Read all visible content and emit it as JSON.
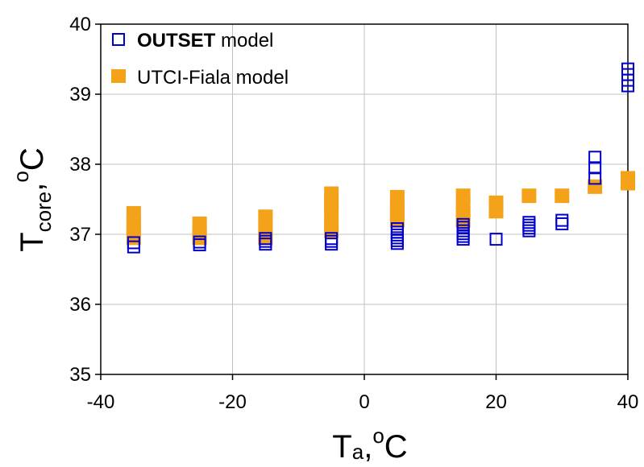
{
  "chart_data": {
    "type": "scatter",
    "xlim": [
      -40,
      40
    ],
    "ylim": [
      35,
      40
    ],
    "x_ticks": [
      -40,
      -20,
      0,
      20,
      40
    ],
    "y_ticks": [
      35,
      36,
      37,
      38,
      39,
      40
    ],
    "x_tick_labels": [
      "-40",
      "-20",
      "0",
      "20",
      "40"
    ],
    "y_tick_labels": [
      "35",
      "36",
      "37",
      "38",
      "39",
      "40"
    ],
    "xlabel": {
      "main": "T",
      "sub": "a",
      "tail": ",",
      "sup": "o",
      "unit": "C"
    },
    "ylabel": {
      "main": "T",
      "sub": "core",
      "tail": ",",
      "sup": "o",
      "unit": "C"
    },
    "grid": true,
    "legend_position": "top-left",
    "colors": {
      "outset": "#0000cc",
      "utci": "#f5a21b"
    },
    "series": [
      {
        "name_bold": "OUTSET",
        "name_rest": " model",
        "marker": "open-square",
        "color": "#0000cc",
        "points": [
          [
            -35,
            36.82
          ],
          [
            -35,
            36.88
          ],
          [
            -25,
            36.85
          ],
          [
            -25,
            36.89
          ],
          [
            -15,
            36.86
          ],
          [
            -15,
            36.9
          ],
          [
            -15,
            36.94
          ],
          [
            -5,
            36.86
          ],
          [
            -5,
            36.9
          ],
          [
            -5,
            36.94
          ],
          [
            5,
            36.87
          ],
          [
            5,
            36.91
          ],
          [
            5,
            36.95
          ],
          [
            5,
            36.99
          ],
          [
            5,
            37.03
          ],
          [
            5,
            37.08
          ],
          [
            15,
            36.93
          ],
          [
            15,
            36.97
          ],
          [
            15,
            37.01
          ],
          [
            15,
            37.05
          ],
          [
            15,
            37.1
          ],
          [
            15,
            37.14
          ],
          [
            20,
            36.93
          ],
          [
            25,
            37.05
          ],
          [
            25,
            37.09
          ],
          [
            25,
            37.13
          ],
          [
            25,
            37.17
          ],
          [
            30,
            37.15
          ],
          [
            30,
            37.2
          ],
          [
            35,
            37.8
          ],
          [
            35,
            37.95
          ],
          [
            35,
            38.1
          ],
          [
            40,
            39.12
          ],
          [
            40,
            39.2
          ],
          [
            40,
            39.28
          ],
          [
            40,
            39.36
          ]
        ]
      },
      {
        "name": "UTCI-Fiala model",
        "marker": "filled-square",
        "color": "#f5a21b",
        "points": [
          [
            -35,
            36.95
          ],
          [
            -35,
            37.05
          ],
          [
            -35,
            37.15
          ],
          [
            -35,
            37.3
          ],
          [
            -25,
            36.95
          ],
          [
            -25,
            37.05
          ],
          [
            -25,
            37.15
          ],
          [
            -15,
            36.95
          ],
          [
            -15,
            37.08
          ],
          [
            -15,
            37.25
          ],
          [
            -5,
            37.05
          ],
          [
            -5,
            37.15
          ],
          [
            -5,
            37.35
          ],
          [
            -5,
            37.45
          ],
          [
            -5,
            37.58
          ],
          [
            5,
            37.2
          ],
          [
            5,
            37.3
          ],
          [
            5,
            37.4
          ],
          [
            5,
            37.53
          ],
          [
            15,
            37.2
          ],
          [
            15,
            37.3
          ],
          [
            15,
            37.42
          ],
          [
            15,
            37.55
          ],
          [
            20,
            37.33
          ],
          [
            20,
            37.45
          ],
          [
            25,
            37.55
          ],
          [
            30,
            37.55
          ],
          [
            35,
            37.68
          ],
          [
            40,
            37.73
          ],
          [
            40,
            37.8
          ]
        ]
      }
    ]
  }
}
